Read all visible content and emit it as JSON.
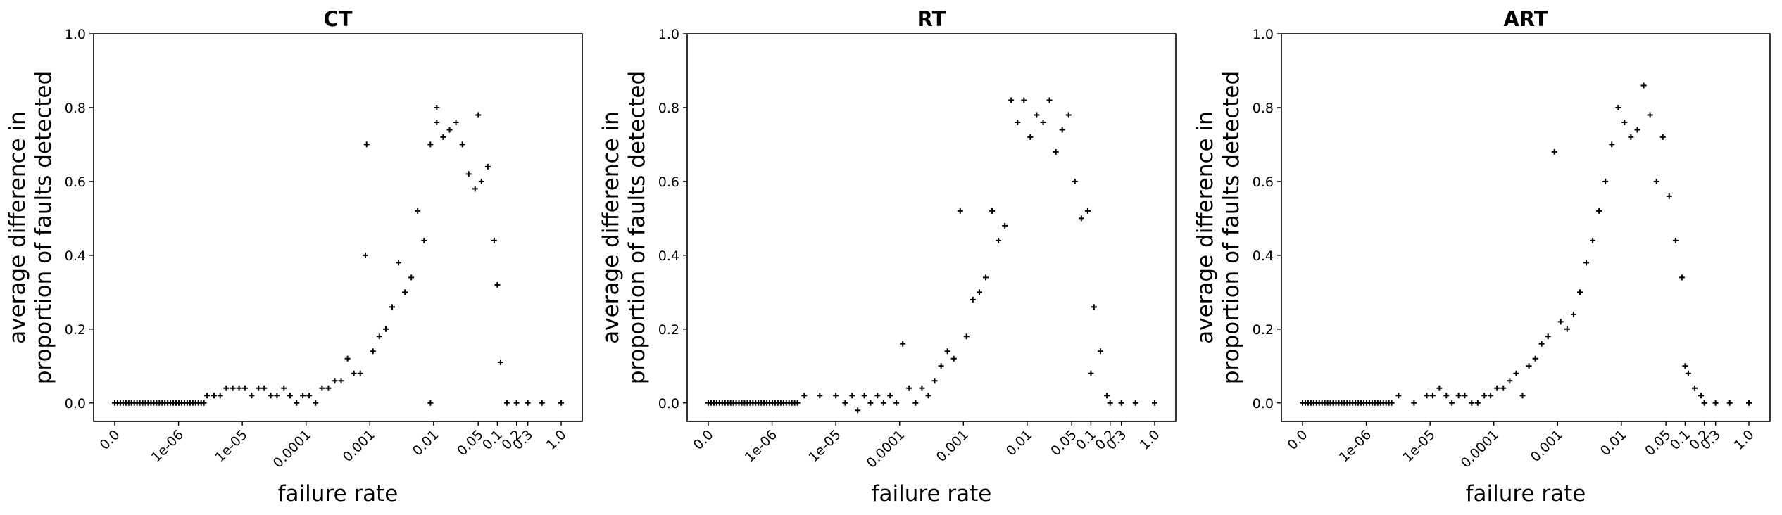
{
  "chart_data": [
    {
      "type": "scatter",
      "title": "CT",
      "xlabel": "failure rate",
      "ylabel": "average difference in\nproportion of faults detected",
      "xscale": "symlog",
      "x_ticks": [
        0.0,
        1e-06,
        1e-05,
        0.0001,
        0.001,
        0.01,
        0.05,
        0.1,
        0.2,
        0.3,
        1.0
      ],
      "x_tick_labels": [
        "0.0",
        "1e-06",
        "1e-05",
        "0.0001",
        "0.001",
        "0.01",
        "0.05",
        "0.1",
        "0.2",
        "0.3",
        "1.0"
      ],
      "y_ticks": [
        0.0,
        0.2,
        0.4,
        0.6,
        0.8,
        1.0
      ],
      "y_tick_labels": [
        "0.0",
        "0.2",
        "0.4",
        "0.6",
        "0.8",
        "1.0"
      ],
      "ylim": [
        -0.05,
        1.0
      ],
      "marker": "+",
      "grid": false,
      "points": [
        [
          2.8e-06,
          0.02
        ],
        [
          3.6e-06,
          0.02
        ],
        [
          4.5e-06,
          0.02
        ],
        [
          5.6e-06,
          0.04
        ],
        [
          7.1e-06,
          0.04
        ],
        [
          8.9e-06,
          0.04
        ],
        [
          1.1e-05,
          0.04
        ],
        [
          1.4e-05,
          0.02
        ],
        [
          1.8e-05,
          0.04
        ],
        [
          2.2e-05,
          0.04
        ],
        [
          2.8e-05,
          0.02
        ],
        [
          3.5e-05,
          0.02
        ],
        [
          4.5e-05,
          0.04
        ],
        [
          5.6e-05,
          0.02
        ],
        [
          7.1e-05,
          0.0
        ],
        [
          8.9e-05,
          0.02
        ],
        [
          0.000112,
          0.02
        ],
        [
          0.000141,
          0.0
        ],
        [
          0.000178,
          0.04
        ],
        [
          0.000224,
          0.04
        ],
        [
          0.000282,
          0.06
        ],
        [
          0.000355,
          0.06
        ],
        [
          0.000447,
          0.12
        ],
        [
          0.000562,
          0.08
        ],
        [
          0.000708,
          0.08
        ],
        [
          0.000891,
          0.7
        ],
        [
          0.000851,
          0.4
        ],
        [
          0.00112,
          0.14
        ],
        [
          0.00141,
          0.18
        ],
        [
          0.00178,
          0.2
        ],
        [
          0.00224,
          0.26
        ],
        [
          0.00282,
          0.38
        ],
        [
          0.00355,
          0.3
        ],
        [
          0.00447,
          0.34
        ],
        [
          0.00562,
          0.52
        ],
        [
          0.00708,
          0.44
        ],
        [
          0.00891,
          0.7
        ],
        [
          0.00891,
          0.0
        ],
        [
          0.0112,
          0.8
        ],
        [
          0.0112,
          0.76
        ],
        [
          0.0141,
          0.72
        ],
        [
          0.0178,
          0.74
        ],
        [
          0.0224,
          0.76
        ],
        [
          0.0282,
          0.7
        ],
        [
          0.0355,
          0.62
        ],
        [
          0.0447,
          0.58
        ],
        [
          0.0501,
          0.78
        ],
        [
          0.0562,
          0.6
        ],
        [
          0.0708,
          0.64
        ],
        [
          0.0891,
          0.44
        ],
        [
          0.1,
          0.32
        ],
        [
          0.112,
          0.11
        ],
        [
          0.141,
          0.0
        ],
        [
          0.2,
          0.0
        ],
        [
          0.3,
          0.0
        ],
        [
          0.5,
          0.0
        ],
        [
          1.0,
          0.0
        ]
      ],
      "zero_run": {
        "from": 0.0,
        "to": 2.5e-06,
        "y": 0.0
      }
    },
    {
      "type": "scatter",
      "title": "RT",
      "xlabel": "failure rate",
      "ylabel": "average difference in\nproportion of faults detected",
      "xscale": "symlog",
      "x_ticks": [
        0.0,
        1e-06,
        1e-05,
        0.0001,
        0.001,
        0.01,
        0.05,
        0.1,
        0.2,
        0.3,
        1.0
      ],
      "x_tick_labels": [
        "0.0",
        "1e-06",
        "1e-05",
        "0.0001",
        "0.001",
        "0.01",
        "0.05",
        "0.1",
        "0.2",
        "0.3",
        "1.0"
      ],
      "y_ticks": [
        0.0,
        0.2,
        0.4,
        0.6,
        0.8,
        1.0
      ],
      "y_tick_labels": [
        "0.0",
        "0.2",
        "0.4",
        "0.6",
        "0.8",
        "1.0"
      ],
      "ylim": [
        -0.05,
        1.0
      ],
      "marker": "+",
      "grid": false,
      "points": [
        [
          3.2e-06,
          0.02
        ],
        [
          5.6e-06,
          0.02
        ],
        [
          1e-05,
          0.02
        ],
        [
          1.4e-05,
          0.0
        ],
        [
          1.8e-05,
          0.02
        ],
        [
          2.2e-05,
          -0.02
        ],
        [
          2.8e-05,
          0.02
        ],
        [
          3.5e-05,
          0.0
        ],
        [
          4.5e-05,
          0.02
        ],
        [
          5.6e-05,
          0.0
        ],
        [
          7.1e-05,
          0.02
        ],
        [
          8.9e-05,
          0.0
        ],
        [
          0.000112,
          0.16
        ],
        [
          0.000141,
          0.04
        ],
        [
          0.000178,
          0.0
        ],
        [
          0.000224,
          0.04
        ],
        [
          0.000282,
          0.02
        ],
        [
          0.000355,
          0.06
        ],
        [
          0.000447,
          0.1
        ],
        [
          0.000562,
          0.14
        ],
        [
          0.000708,
          0.12
        ],
        [
          0.000891,
          0.52
        ],
        [
          0.00112,
          0.18
        ],
        [
          0.00141,
          0.28
        ],
        [
          0.00178,
          0.3
        ],
        [
          0.00224,
          0.34
        ],
        [
          0.00282,
          0.52
        ],
        [
          0.00355,
          0.44
        ],
        [
          0.00447,
          0.48
        ],
        [
          0.00562,
          0.82
        ],
        [
          0.00708,
          0.76
        ],
        [
          0.00891,
          0.82
        ],
        [
          0.0112,
          0.72
        ],
        [
          0.0141,
          0.78
        ],
        [
          0.0178,
          0.76
        ],
        [
          0.0224,
          0.82
        ],
        [
          0.0282,
          0.68
        ],
        [
          0.0355,
          0.74
        ],
        [
          0.0447,
          0.78
        ],
        [
          0.0562,
          0.6
        ],
        [
          0.0708,
          0.5
        ],
        [
          0.0891,
          0.52
        ],
        [
          0.1,
          0.08
        ],
        [
          0.112,
          0.26
        ],
        [
          0.141,
          0.14
        ],
        [
          0.178,
          0.02
        ],
        [
          0.2,
          0.0
        ],
        [
          0.3,
          0.0
        ],
        [
          0.5,
          0.0
        ],
        [
          1.0,
          0.0
        ]
      ],
      "zero_run": {
        "from": 0.0,
        "to": 2.5e-06,
        "y": 0.0
      }
    },
    {
      "type": "scatter",
      "title": "ART",
      "xlabel": "failure rate",
      "ylabel": "average difference in\nproportion of faults detected",
      "xscale": "symlog",
      "x_ticks": [
        0.0,
        1e-06,
        1e-05,
        0.0001,
        0.001,
        0.01,
        0.05,
        0.1,
        0.2,
        0.3,
        1.0
      ],
      "x_tick_labels": [
        "0.0",
        "1e-06",
        "1e-05",
        "0.0001",
        "0.001",
        "0.01",
        "0.05",
        "0.1",
        "0.2",
        "0.3",
        "1.0"
      ],
      "y_ticks": [
        0.0,
        0.2,
        0.4,
        0.6,
        0.8,
        1.0
      ],
      "y_tick_labels": [
        "0.0",
        "0.2",
        "0.4",
        "0.6",
        "0.8",
        "1.0"
      ],
      "ylim": [
        -0.05,
        1.0
      ],
      "marker": "+",
      "grid": false,
      "points": [
        [
          3.2e-06,
          0.02
        ],
        [
          5.6e-06,
          0.0
        ],
        [
          8.9e-06,
          0.02
        ],
        [
          1.1e-05,
          0.02
        ],
        [
          1.4e-05,
          0.04
        ],
        [
          1.8e-05,
          0.02
        ],
        [
          2.2e-05,
          0.0
        ],
        [
          2.8e-05,
          0.02
        ],
        [
          3.5e-05,
          0.02
        ],
        [
          4.5e-05,
          0.0
        ],
        [
          5.6e-05,
          0.0
        ],
        [
          7.1e-05,
          0.02
        ],
        [
          8.9e-05,
          0.02
        ],
        [
          0.000112,
          0.04
        ],
        [
          0.000141,
          0.04
        ],
        [
          0.000178,
          0.06
        ],
        [
          0.000224,
          0.08
        ],
        [
          0.000282,
          0.02
        ],
        [
          0.000355,
          0.1
        ],
        [
          0.000447,
          0.12
        ],
        [
          0.000562,
          0.16
        ],
        [
          0.000708,
          0.18
        ],
        [
          0.000891,
          0.68
        ],
        [
          0.00112,
          0.22
        ],
        [
          0.00141,
          0.2
        ],
        [
          0.00178,
          0.24
        ],
        [
          0.00224,
          0.3
        ],
        [
          0.00282,
          0.38
        ],
        [
          0.00355,
          0.44
        ],
        [
          0.00447,
          0.52
        ],
        [
          0.00562,
          0.6
        ],
        [
          0.00708,
          0.7
        ],
        [
          0.00891,
          0.8
        ],
        [
          0.0112,
          0.76
        ],
        [
          0.0141,
          0.72
        ],
        [
          0.0178,
          0.74
        ],
        [
          0.0224,
          0.86
        ],
        [
          0.0282,
          0.78
        ],
        [
          0.0355,
          0.6
        ],
        [
          0.0447,
          0.72
        ],
        [
          0.0562,
          0.56
        ],
        [
          0.0708,
          0.44
        ],
        [
          0.0891,
          0.34
        ],
        [
          0.1,
          0.1
        ],
        [
          0.112,
          0.08
        ],
        [
          0.141,
          0.04
        ],
        [
          0.178,
          0.02
        ],
        [
          0.2,
          0.0
        ],
        [
          0.3,
          0.0
        ],
        [
          0.5,
          0.0
        ],
        [
          1.0,
          0.0
        ]
      ],
      "zero_run": {
        "from": 0.0,
        "to": 2.5e-06,
        "y": 0.0
      }
    }
  ]
}
